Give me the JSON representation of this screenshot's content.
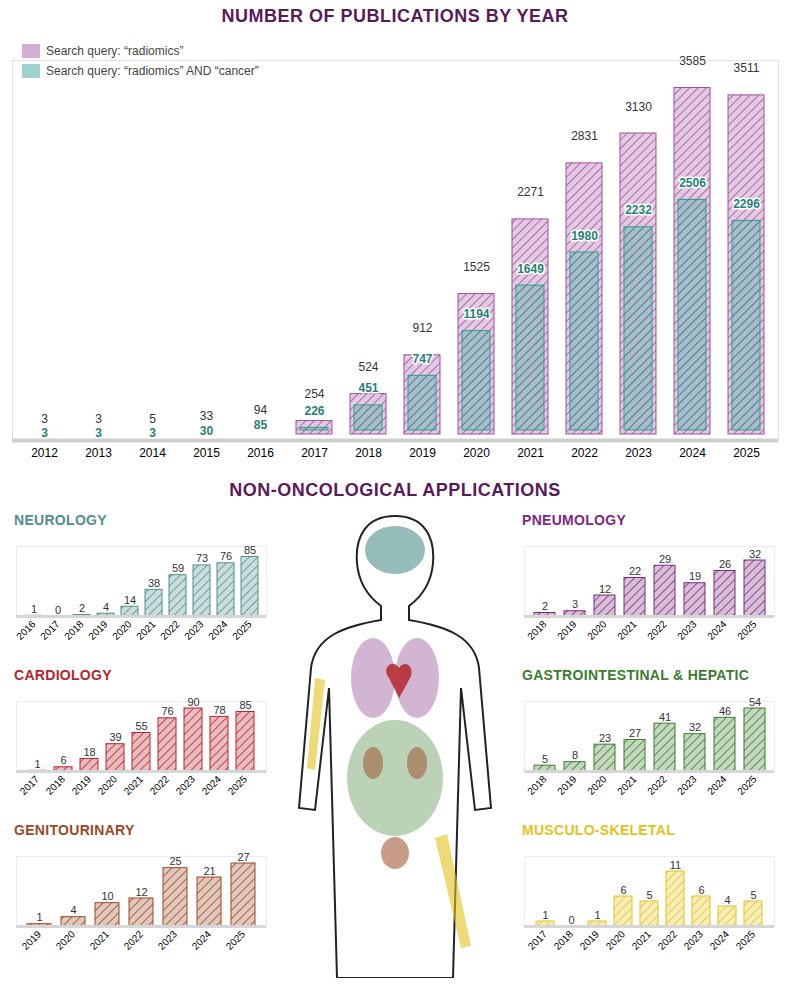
{
  "chart_data": [
    {
      "type": "bar",
      "title": "NUMBER OF PUBLICATIONS BY YEAR",
      "categories": [
        "2012",
        "2013",
        "2014",
        "2015",
        "2016",
        "2017",
        "2018",
        "2019",
        "2020",
        "2021",
        "2022",
        "2023",
        "2024",
        "2025"
      ],
      "series": [
        {
          "name": "Search query: “radiomics”",
          "color": "#a0509f",
          "values": [
            3,
            3,
            5,
            33,
            94,
            254,
            524,
            912,
            1525,
            2271,
            2831,
            3130,
            3585,
            3511
          ]
        },
        {
          "name": "Search query: “radiomics” AND “cancer”",
          "color": "#2f9d92",
          "values": [
            3,
            3,
            3,
            30,
            85,
            226,
            451,
            747,
            1194,
            1649,
            1980,
            2232,
            2506,
            2296
          ]
        }
      ],
      "ylim": [
        0,
        3800
      ],
      "data_labels": true,
      "tick_labels": "x",
      "legend": "top-left"
    },
    {
      "type": "bar",
      "title": "NEUROLOGY",
      "categories": [
        "2016",
        "2017",
        "2018",
        "2019",
        "2020",
        "2021",
        "2022",
        "2023",
        "2024",
        "2025"
      ],
      "values": [
        1,
        0,
        2,
        4,
        14,
        38,
        59,
        73,
        76,
        85
      ],
      "color": "#4f8f8b",
      "ylim": [
        0,
        100
      ],
      "data_labels": true,
      "tick_labels": "x"
    },
    {
      "type": "bar",
      "title": "CARDIOLOGY",
      "categories": [
        "2017",
        "2018",
        "2019",
        "2020",
        "2021",
        "2022",
        "2023",
        "2024",
        "2025"
      ],
      "values": [
        1,
        6,
        18,
        39,
        55,
        76,
        90,
        78,
        85
      ],
      "color": "#b5262b",
      "ylim": [
        0,
        100
      ],
      "data_labels": true,
      "tick_labels": "x"
    },
    {
      "type": "bar",
      "title": "GENITOURINARY",
      "categories": [
        "2019",
        "2020",
        "2021",
        "2022",
        "2023",
        "2024",
        "2025"
      ],
      "values": [
        1,
        4,
        10,
        12,
        25,
        21,
        27
      ],
      "color": "#9b4a26",
      "ylim": [
        0,
        30
      ],
      "data_labels": true,
      "tick_labels": "x"
    },
    {
      "type": "bar",
      "title": "PNEUMOLOGY",
      "categories": [
        "2018",
        "2019",
        "2020",
        "2021",
        "2022",
        "2023",
        "2024",
        "2025"
      ],
      "values": [
        2,
        3,
        12,
        22,
        29,
        19,
        26,
        32
      ],
      "color": "#7d2a7e",
      "ylim": [
        0,
        40
      ],
      "data_labels": true,
      "tick_labels": "x"
    },
    {
      "type": "bar",
      "title": "GASTROINTESTINAL & HEPATIC",
      "categories": [
        "2018",
        "2019",
        "2020",
        "2021",
        "2022",
        "2023",
        "2024",
        "2025"
      ],
      "values": [
        5,
        8,
        23,
        27,
        41,
        32,
        46,
        54
      ],
      "color": "#3b7d2e",
      "ylim": [
        0,
        60
      ],
      "data_labels": true,
      "tick_labels": "x"
    },
    {
      "type": "bar",
      "title": "MUSCULO-SKELETAL",
      "categories": [
        "2017",
        "2018",
        "2019",
        "2020",
        "2021",
        "2022",
        "2023",
        "2024",
        "2025"
      ],
      "values": [
        1,
        0,
        1,
        6,
        5,
        11,
        6,
        4,
        5
      ],
      "color": "#e2c31c",
      "ylim": [
        0,
        14
      ],
      "data_labels": true,
      "tick_labels": "x"
    }
  ],
  "section_title": "NON-ONCOLOGICAL APPLICATIONS"
}
